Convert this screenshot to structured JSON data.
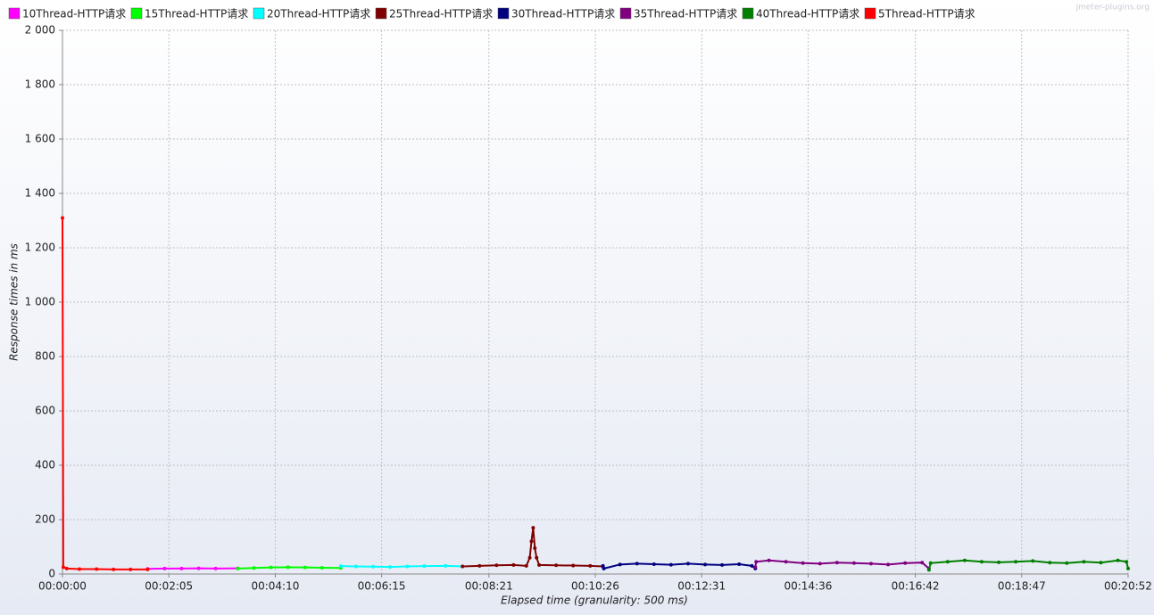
{
  "chart_data": {
    "type": "line",
    "watermark": "jmeter-plugins.org",
    "x_label": "Elapsed time (granularity: 500 ms)",
    "y_label": "Response times in ms",
    "xlim": [
      0,
      1252
    ],
    "ylim": [
      0,
      2000
    ],
    "xticks": [
      {
        "value": 0,
        "label": "00:00:00"
      },
      {
        "value": 125,
        "label": "00:02:05"
      },
      {
        "value": 250,
        "label": "00:04:10"
      },
      {
        "value": 375,
        "label": "00:06:15"
      },
      {
        "value": 501,
        "label": "00:08:21"
      },
      {
        "value": 626,
        "label": "00:10:26"
      },
      {
        "value": 751,
        "label": "00:12:31"
      },
      {
        "value": 876,
        "label": "00:14:36"
      },
      {
        "value": 1002,
        "label": "00:16:42"
      },
      {
        "value": 1127,
        "label": "00:18:47"
      },
      {
        "value": 1252,
        "label": "00:20:52"
      }
    ],
    "yticks": [
      0,
      200,
      400,
      600,
      800,
      {
        "value": 1000,
        "label": "1 000"
      },
      {
        "value": 1200,
        "label": "1 200"
      },
      {
        "value": 1400,
        "label": "1 400"
      },
      {
        "value": 1600,
        "label": "1 600"
      },
      {
        "value": 1800,
        "label": "1 800"
      },
      {
        "value": 2000,
        "label": "2 000"
      }
    ],
    "grid": true,
    "legend": "top",
    "series": [
      {
        "name": "10Thread-HTTP请求",
        "color": "#ff00ff",
        "x": [
          100,
          120,
          140,
          160,
          180,
          206
        ],
        "values": [
          19,
          20,
          20,
          21,
          20,
          21
        ]
      },
      {
        "name": "15Thread-HTTP请求",
        "color": "#00ff00",
        "x": [
          206,
          225,
          245,
          265,
          285,
          305,
          327
        ],
        "values": [
          20,
          22,
          24,
          25,
          24,
          23,
          22
        ]
      },
      {
        "name": "20Thread-HTTP请求",
        "color": "#00ffff",
        "x": [
          327,
          345,
          365,
          385,
          405,
          425,
          450,
          470
        ],
        "values": [
          29,
          28,
          27,
          26,
          28,
          29,
          30,
          28
        ]
      },
      {
        "name": "25Thread-HTTP请求",
        "color": "#800000",
        "x": [
          470,
          490,
          510,
          530,
          545,
          549,
          551,
          553,
          555,
          557,
          560,
          580,
          600,
          620,
          635
        ],
        "values": [
          28,
          30,
          32,
          33,
          30,
          60,
          120,
          170,
          95,
          60,
          33,
          32,
          31,
          30,
          28
        ]
      },
      {
        "name": "30Thread-HTTP请求",
        "color": "#000080",
        "x": [
          635,
          636,
          655,
          675,
          695,
          715,
          735,
          755,
          775,
          795,
          810,
          814
        ],
        "values": [
          30,
          20,
          35,
          38,
          36,
          34,
          38,
          35,
          33,
          36,
          30,
          20
        ]
      },
      {
        "name": "35Thread-HTTP请求",
        "color": "#800080",
        "x": [
          814,
          815,
          830,
          850,
          870,
          890,
          910,
          930,
          950,
          970,
          990,
          1010,
          1018
        ],
        "values": [
          25,
          45,
          50,
          45,
          40,
          38,
          42,
          40,
          38,
          35,
          40,
          42,
          20
        ]
      },
      {
        "name": "40Thread-HTTP请求",
        "color": "#008000",
        "x": [
          1018,
          1020,
          1040,
          1060,
          1080,
          1100,
          1120,
          1140,
          1160,
          1180,
          1200,
          1220,
          1240,
          1250,
          1252
        ],
        "values": [
          15,
          40,
          45,
          50,
          45,
          43,
          45,
          48,
          42,
          40,
          45,
          42,
          50,
          45,
          20
        ]
      },
      {
        "name": "5Thread-HTTP请求",
        "color": "#ff0000",
        "x": [
          0,
          1,
          5,
          20,
          40,
          60,
          80,
          100
        ],
        "values": [
          1310,
          25,
          20,
          18,
          18,
          17,
          17,
          17
        ]
      }
    ]
  }
}
